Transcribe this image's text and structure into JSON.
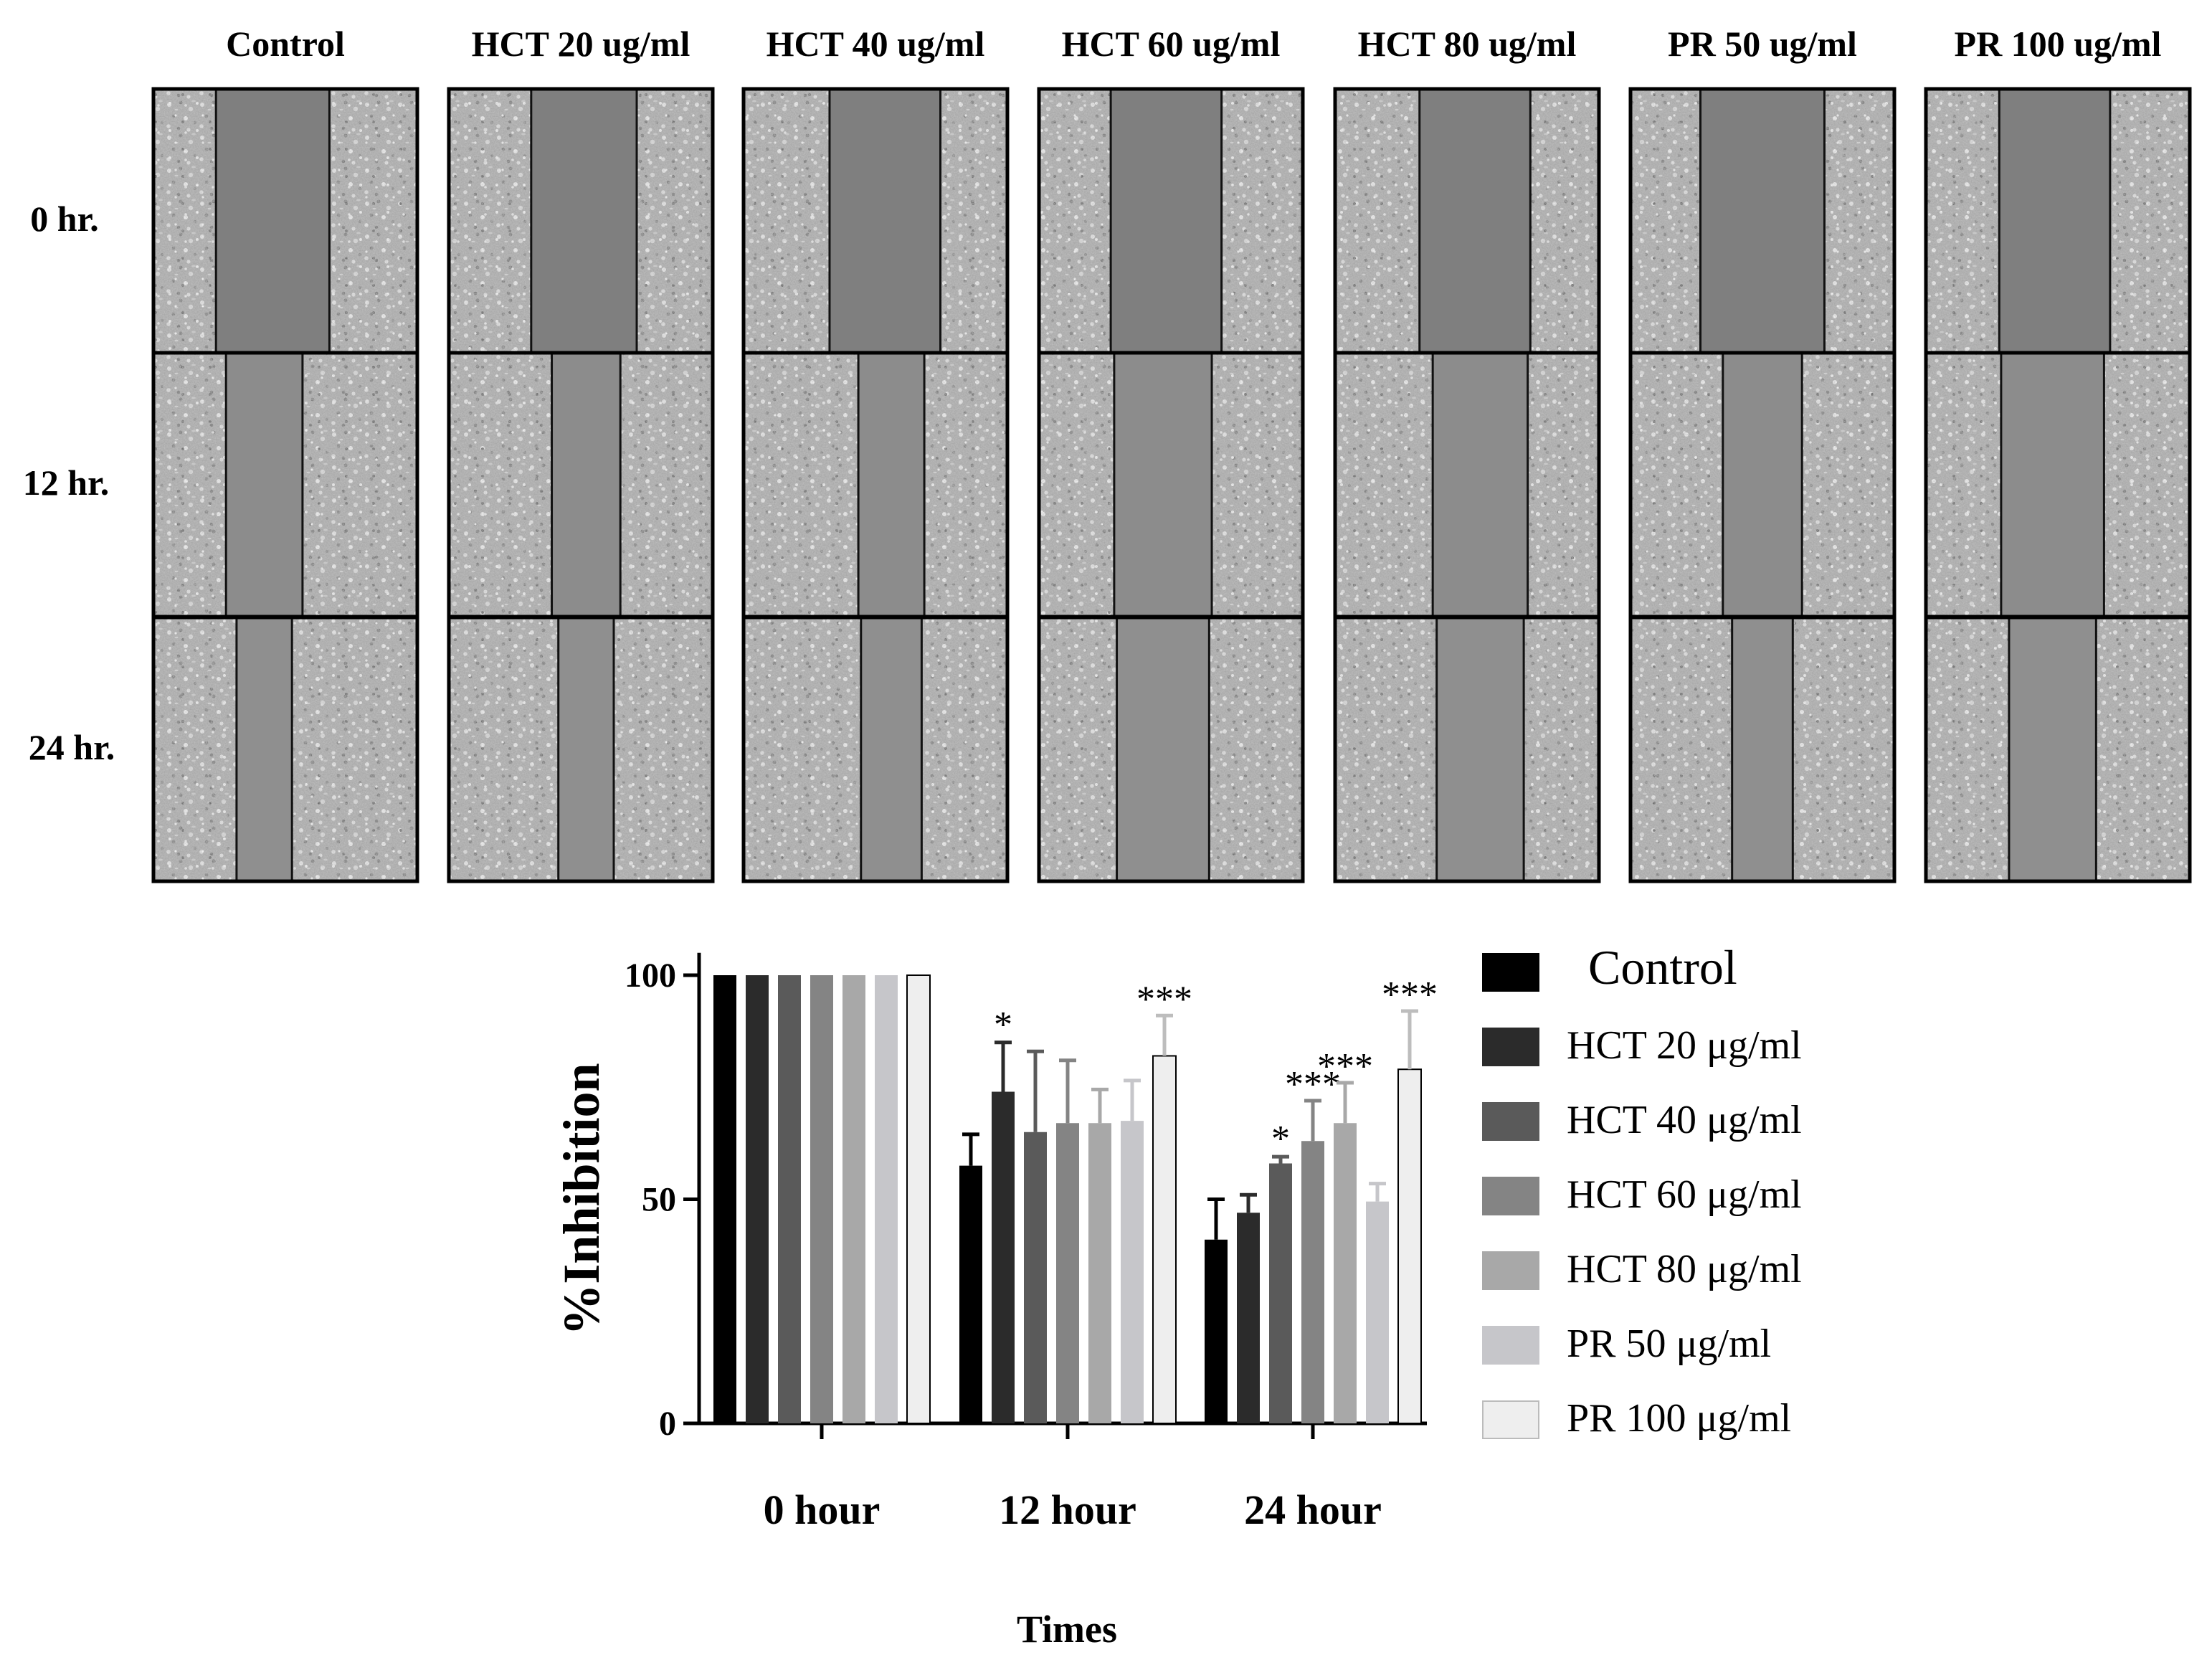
{
  "micrograph_grid": {
    "column_headers": [
      "Control",
      "HCT 20 ug/ml",
      "HCT 40 ug/ml",
      "HCT 60 ug/ml",
      "HCT 80 ug/ml",
      "PR 50 ug/ml",
      "PR 100 ug/ml"
    ],
    "row_labels": [
      "0 hr.",
      "12 hr.",
      "24 hr."
    ],
    "wound_gap_fraction": [
      [
        0.43,
        0.4,
        0.42,
        0.42,
        0.42,
        0.47,
        0.42
      ],
      [
        0.29,
        0.26,
        0.25,
        0.37,
        0.36,
        0.3,
        0.39
      ],
      [
        0.21,
        0.21,
        0.23,
        0.35,
        0.33,
        0.23,
        0.33
      ]
    ]
  },
  "chart_data": {
    "type": "bar",
    "categories": [
      "0 hour",
      "12 hour",
      "24 hour"
    ],
    "ylabel": "%Inhibition",
    "xlabel": "Times",
    "ylim": [
      0,
      100
    ],
    "yticks": [
      0,
      50,
      100
    ],
    "legend_position": "right",
    "series": [
      {
        "name": "Control",
        "color": "#000000",
        "values": [
          100,
          57.5,
          41
        ],
        "errors": [
          0,
          7,
          9
        ],
        "significance": [
          "",
          "",
          ""
        ]
      },
      {
        "name": "HCT 20 μg/ml",
        "color": "#2b2b2b",
        "values": [
          100,
          74,
          47
        ],
        "errors": [
          0,
          11,
          4
        ],
        "significance": [
          "",
          "*",
          ""
        ]
      },
      {
        "name": "HCT 40 μg/ml",
        "color": "#5a5a5a",
        "values": [
          100,
          65,
          58
        ],
        "errors": [
          0,
          18,
          1.5
        ],
        "significance": [
          "",
          "",
          "*"
        ]
      },
      {
        "name": "HCT 60 μg/ml",
        "color": "#848484",
        "values": [
          100,
          67,
          63
        ],
        "errors": [
          0,
          14,
          9
        ],
        "significance": [
          "",
          "",
          "***"
        ]
      },
      {
        "name": "HCT 80 μg/ml",
        "color": "#a8a8a8",
        "values": [
          100,
          67,
          67
        ],
        "errors": [
          0,
          7.5,
          9
        ],
        "significance": [
          "",
          "",
          "***"
        ]
      },
      {
        "name": "PR 50 μg/ml",
        "color": "#c6c6ca",
        "values": [
          100,
          67.5,
          49.5
        ],
        "errors": [
          0,
          9,
          4
        ],
        "significance": [
          "",
          "",
          ""
        ]
      },
      {
        "name": "PR 100 μg/ml",
        "color": "#eeeeee",
        "values": [
          100,
          82,
          79
        ],
        "errors": [
          0,
          9,
          13
        ],
        "significance": [
          "",
          "***",
          "***"
        ]
      }
    ]
  }
}
